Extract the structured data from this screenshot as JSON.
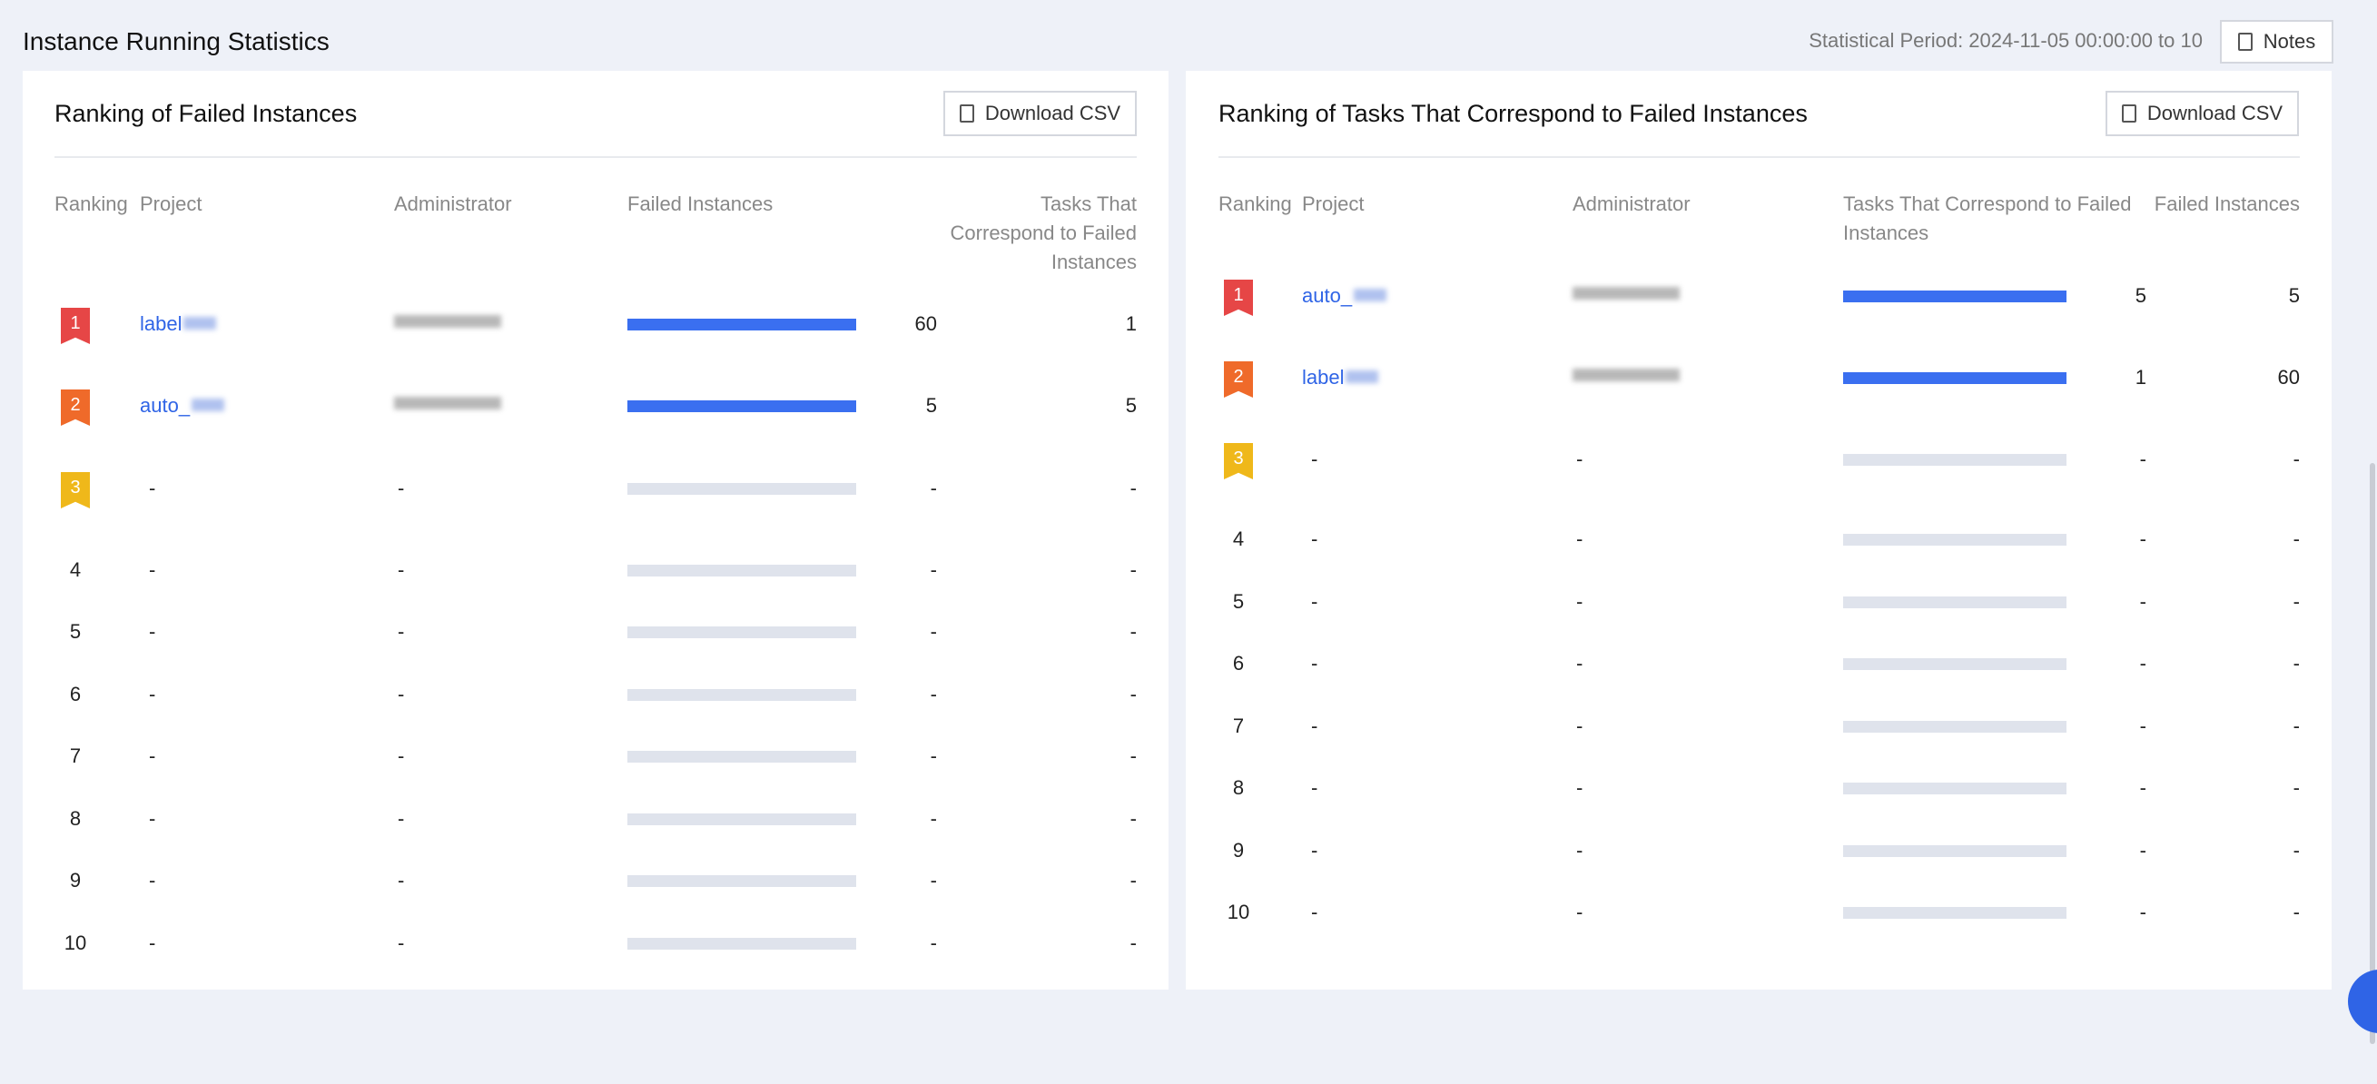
{
  "header": {
    "title": "Instance Running Statistics",
    "period": "Statistical Period: 2024-11-05 00:00:00 to 10",
    "notes_button": "Notes"
  },
  "panels": [
    {
      "title": "Ranking of Failed Instances",
      "download_button": "Download CSV",
      "columns": [
        "Ranking",
        "Project",
        "Administrator",
        "Failed Instances",
        "Tasks That Correspond to Failed Instances"
      ],
      "rows": [
        {
          "rank": 1,
          "project": "label",
          "value": 60,
          "secondary": 1
        },
        {
          "rank": 2,
          "project": "auto_",
          "value": 5,
          "secondary": 5
        },
        {
          "rank": 3,
          "project": "-",
          "administrator": "-",
          "value": "-",
          "secondary": "-"
        },
        {
          "rank": 4,
          "project": "-",
          "administrator": "-",
          "value": "-",
          "secondary": "-"
        },
        {
          "rank": 5,
          "project": "-",
          "administrator": "-",
          "value": "-",
          "secondary": "-"
        },
        {
          "rank": 6,
          "project": "-",
          "administrator": "-",
          "value": "-",
          "secondary": "-"
        },
        {
          "rank": 7,
          "project": "-",
          "administrator": "-",
          "value": "-",
          "secondary": "-"
        },
        {
          "rank": 8,
          "project": "-",
          "administrator": "-",
          "value": "-",
          "secondary": "-"
        },
        {
          "rank": 9,
          "project": "-",
          "administrator": "-",
          "value": "-",
          "secondary": "-"
        },
        {
          "rank": 10,
          "project": "-",
          "administrator": "-",
          "value": "-",
          "secondary": "-"
        }
      ]
    },
    {
      "title": "Ranking of Tasks That Correspond to Failed Instances",
      "download_button": "Download CSV",
      "columns": [
        "Ranking",
        "Project",
        "Administrator",
        "Tasks That Correspond to Failed Instances",
        "Failed Instances"
      ],
      "rows": [
        {
          "rank": 1,
          "project": "auto_",
          "value": 5,
          "secondary": 5
        },
        {
          "rank": 2,
          "project": "label",
          "value": 1,
          "secondary": 60
        },
        {
          "rank": 3,
          "project": "-",
          "administrator": "-",
          "value": "-",
          "secondary": "-"
        },
        {
          "rank": 4,
          "project": "-",
          "administrator": "-",
          "value": "-",
          "secondary": "-"
        },
        {
          "rank": 5,
          "project": "-",
          "administrator": "-",
          "value": "-",
          "secondary": "-"
        },
        {
          "rank": 6,
          "project": "-",
          "administrator": "-",
          "value": "-",
          "secondary": "-"
        },
        {
          "rank": 7,
          "project": "-",
          "administrator": "-",
          "value": "-",
          "secondary": "-"
        },
        {
          "rank": 8,
          "project": "-",
          "administrator": "-",
          "value": "-",
          "secondary": "-"
        },
        {
          "rank": 9,
          "project": "-",
          "administrator": "-",
          "value": "-",
          "secondary": "-"
        },
        {
          "rank": 10,
          "project": "-",
          "administrator": "-",
          "value": "-",
          "secondary": "-"
        }
      ]
    }
  ]
}
